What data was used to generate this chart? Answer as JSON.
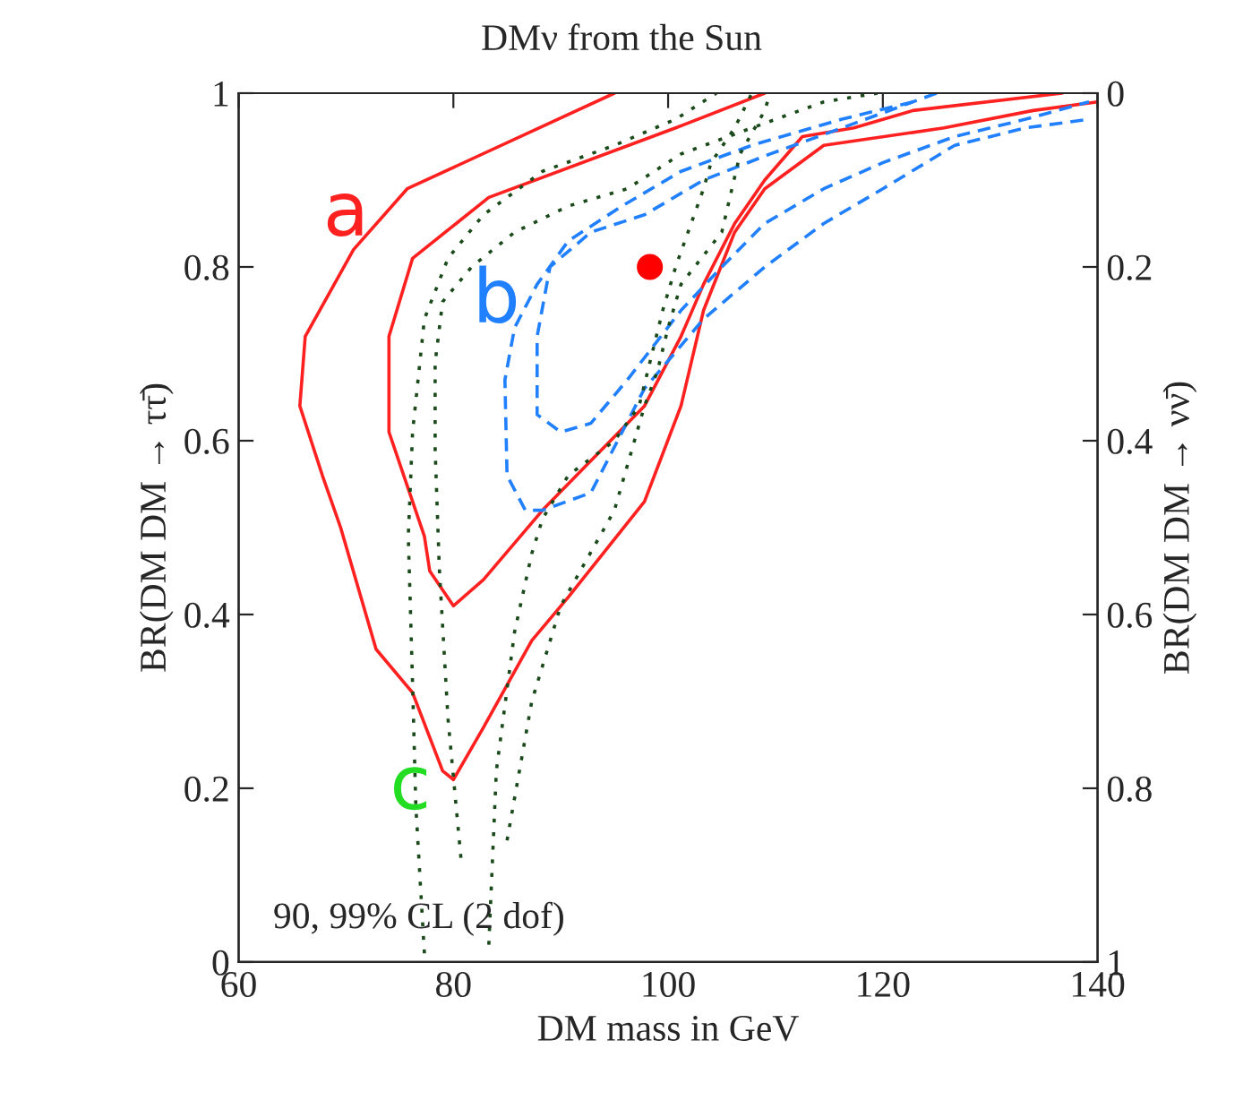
{
  "chart_data": {
    "type": "line",
    "title": "DMν from the Sun",
    "xlabel": "DM mass in GeV",
    "ylabel": "BR(DM DM → ττ̄)",
    "y2label": "BR(DM DM → νν̄)",
    "xlim": [
      60,
      140
    ],
    "xticks": [
      60,
      80,
      100,
      120,
      140
    ],
    "ylim": [
      0,
      1
    ],
    "yticks": [
      0,
      0.2,
      0.4,
      0.6,
      0.8,
      1
    ],
    "y2lim": [
      1,
      0
    ],
    "y2ticks": [
      0,
      0.2,
      0.4,
      0.6,
      0.8,
      1
    ],
    "grid": false,
    "legend": false,
    "marker": "none",
    "series": [
      {
        "color": "#ff2020",
        "line_style": "solid",
        "x": [
          95,
          75.7,
          70.7,
          66.2,
          65.7,
          67.8,
          69.5,
          72.8,
          76.2,
          79,
          80,
          82.8,
          87.3,
          90.7,
          97.8,
          101.2,
          103.3,
          106.2,
          109,
          114.5,
          125.7,
          134,
          140
        ],
        "values": [
          1.0,
          0.89,
          0.82,
          0.72,
          0.64,
          0.56,
          0.5,
          0.36,
          0.31,
          0.22,
          0.21,
          0.27,
          0.37,
          0.42,
          0.53,
          0.64,
          0.75,
          0.84,
          0.89,
          0.94,
          0.96,
          0.98,
          0.99
        ]
      },
      {
        "color": "#ff2020",
        "line_style": "solid",
        "x": [
          109,
          100.7,
          83.3,
          76.2,
          74,
          74,
          77.3,
          77.8,
          80,
          82.8,
          88.3,
          97.8,
          101.2,
          103.3,
          106.2,
          109,
          112.5,
          117.3,
          122.8,
          136.7
        ],
        "values": [
          1.0,
          0.96,
          0.88,
          0.81,
          0.72,
          0.61,
          0.49,
          0.45,
          0.41,
          0.44,
          0.52,
          0.64,
          0.72,
          0.78,
          0.85,
          0.9,
          0.95,
          0.96,
          0.98,
          1.0
        ]
      },
      {
        "color": "#2080ff",
        "line_style": "dashed",
        "x": [
          125,
          116.2,
          109.5,
          103.3,
          97.8,
          92.8,
          89,
          87.8,
          87.8,
          90,
          92.8,
          96.2,
          101.2,
          105,
          109,
          114.5,
          120,
          126.7,
          133.3,
          139.2
        ],
        "values": [
          1.0,
          0.96,
          0.93,
          0.9,
          0.86,
          0.84,
          0.8,
          0.72,
          0.63,
          0.61,
          0.62,
          0.67,
          0.75,
          0.8,
          0.85,
          0.89,
          0.92,
          0.95,
          0.97,
          0.99
        ]
      },
      {
        "color": "#2080ff",
        "line_style": "dashed",
        "x": [
          122.8,
          116.2,
          107.8,
          101.2,
          95.7,
          90.7,
          87.8,
          85.7,
          84.8,
          85,
          86.7,
          88.3,
          92.8,
          97.8,
          103.3,
          109,
          114.5,
          120,
          126.7,
          133.3,
          139.2
        ],
        "values": [
          0.99,
          0.97,
          0.94,
          0.91,
          0.87,
          0.83,
          0.78,
          0.73,
          0.67,
          0.56,
          0.52,
          0.52,
          0.54,
          0.66,
          0.74,
          0.8,
          0.85,
          0.89,
          0.94,
          0.96,
          0.97
        ]
      },
      {
        "color": "#1a4a1a",
        "line_style": "dotted",
        "x": [
          77.3,
          76.5,
          76.2,
          75.8,
          76.2,
          77.3,
          79.5,
          82.8,
          88.3,
          95,
          100.7,
          104.5
        ],
        "values": [
          0.01,
          0.18,
          0.32,
          0.49,
          0.61,
          0.74,
          0.81,
          0.86,
          0.91,
          0.94,
          0.97,
          1.0
        ]
      },
      {
        "color": "#1a4a1a",
        "line_style": "dotted",
        "x": [
          80.7,
          79.5,
          78.7,
          78.3,
          78.3,
          79,
          81.7,
          85.7,
          90.7,
          96.2,
          101.2,
          107.8,
          114.5,
          119.5
        ],
        "values": [
          0.12,
          0.28,
          0.45,
          0.59,
          0.69,
          0.76,
          0.8,
          0.84,
          0.87,
          0.89,
          0.93,
          0.96,
          0.99,
          1.0
        ]
      },
      {
        "color": "#1a4a1a",
        "line_style": "dotted",
        "x": [
          83.3,
          84,
          85.7,
          87.3,
          88.3,
          90.7,
          95,
          97.3,
          99.5,
          100.7,
          103.3,
          104,
          106.2,
          107.8
        ],
        "values": [
          0.02,
          0.22,
          0.38,
          0.47,
          0.51,
          0.56,
          0.6,
          0.64,
          0.75,
          0.8,
          0.89,
          0.92,
          0.96,
          1.0
        ]
      },
      {
        "color": "#1a4a1a",
        "line_style": "dotted",
        "x": [
          85,
          87.3,
          90,
          95,
          97.8,
          99,
          100,
          101.2,
          105,
          106.7,
          109,
          109.5
        ],
        "values": [
          0.14,
          0.3,
          0.41,
          0.52,
          0.64,
          0.68,
          0.73,
          0.78,
          0.84,
          0.93,
          0.98,
          1.0
        ]
      },
      {
        "type": "scatter",
        "marker": "circle",
        "color": "#ff0000",
        "x": [
          98.3
        ],
        "values": [
          0.8
        ]
      }
    ],
    "annotations": [
      "a",
      "b",
      "c",
      "90, 99% CL (2 dof)"
    ]
  }
}
